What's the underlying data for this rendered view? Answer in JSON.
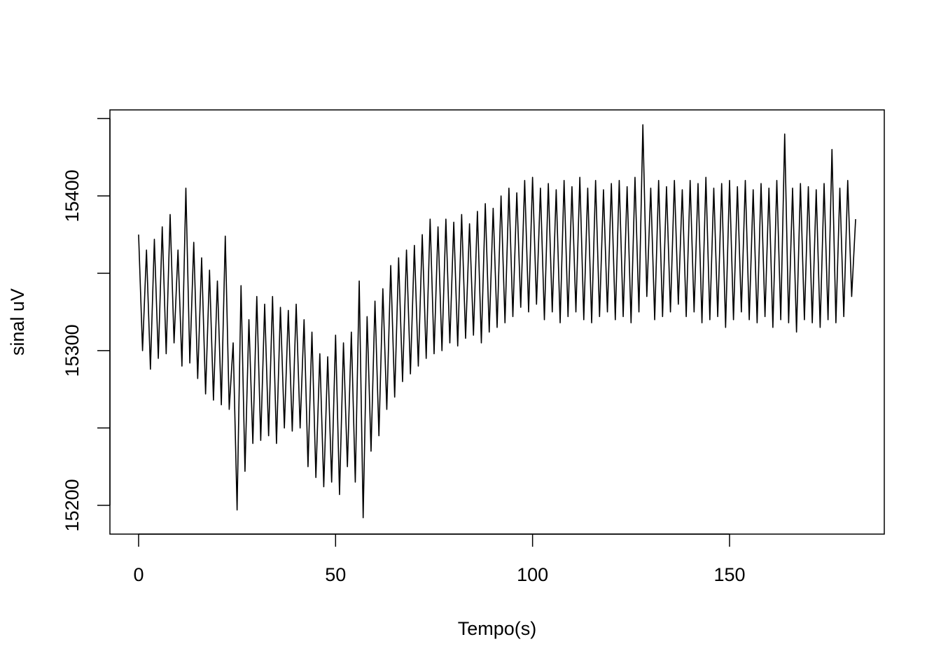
{
  "chart_data": {
    "type": "line",
    "xlabel": "Tempo(s)",
    "ylabel": "sinal uV",
    "x": [
      0,
      1,
      2,
      3,
      4,
      5,
      6,
      7,
      8,
      9,
      10,
      11,
      12,
      13,
      14,
      15,
      16,
      17,
      18,
      19,
      20,
      21,
      22,
      23,
      24,
      25,
      26,
      27,
      28,
      29,
      30,
      31,
      32,
      33,
      34,
      35,
      36,
      37,
      38,
      39,
      40,
      41,
      42,
      43,
      44,
      45,
      46,
      47,
      48,
      49,
      50,
      51,
      52,
      53,
      54,
      55,
      56,
      57,
      58,
      59,
      60,
      61,
      62,
      63,
      64,
      65,
      66,
      67,
      68,
      69,
      70,
      71,
      72,
      73,
      74,
      75,
      76,
      77,
      78,
      79,
      80,
      81,
      82,
      83,
      84,
      85,
      86,
      87,
      88,
      89,
      90,
      91,
      92,
      93,
      94,
      95,
      96,
      97,
      98,
      99,
      100,
      101,
      102,
      103,
      104,
      105,
      106,
      107,
      108,
      109,
      110,
      111,
      112,
      113,
      114,
      115,
      116,
      117,
      118,
      119,
      120,
      121,
      122,
      123,
      124,
      125,
      126,
      127,
      128,
      129,
      130,
      131,
      132,
      133,
      134,
      135,
      136,
      137,
      138,
      139,
      140,
      141,
      142,
      143,
      144,
      145,
      146,
      147,
      148,
      149,
      150,
      151,
      152,
      153,
      154,
      155,
      156,
      157,
      158,
      159,
      160,
      161,
      162,
      163,
      164,
      165,
      166,
      167,
      168,
      169,
      170,
      171,
      172,
      173,
      174,
      175,
      176,
      177,
      178,
      179,
      180,
      181,
      182
    ],
    "series": [
      {
        "color": "#000000",
        "values": [
          15375,
          15300,
          15365,
          15288,
          15372,
          15295,
          15380,
          15298,
          15388,
          15305,
          15365,
          15290,
          15405,
          15292,
          15370,
          15282,
          15360,
          15272,
          15352,
          15268,
          15345,
          15265,
          15374,
          15262,
          15305,
          15197,
          15342,
          15222,
          15320,
          15240,
          15335,
          15242,
          15330,
          15245,
          15335,
          15240,
          15328,
          15250,
          15326,
          15248,
          15330,
          15250,
          15320,
          15225,
          15312,
          15218,
          15298,
          15212,
          15296,
          15215,
          15310,
          15207,
          15305,
          15225,
          15312,
          15215,
          15345,
          15192,
          15322,
          15235,
          15332,
          15245,
          15340,
          15262,
          15355,
          15270,
          15360,
          15280,
          15365,
          15285,
          15368,
          15290,
          15375,
          15295,
          15385,
          15298,
          15380,
          15300,
          15385,
          15305,
          15383,
          15303,
          15388,
          15308,
          15382,
          15310,
          15390,
          15305,
          15395,
          15312,
          15392,
          15315,
          15400,
          15318,
          15405,
          15322,
          15402,
          15328,
          15410,
          15325,
          15412,
          15330,
          15405,
          15320,
          15408,
          15325,
          15404,
          15318,
          15410,
          15322,
          15406,
          15325,
          15412,
          15320,
          15405,
          15318,
          15410,
          15322,
          15404,
          15325,
          15408,
          15320,
          15410,
          15322,
          15406,
          15318,
          15412,
          15325,
          15446,
          15335,
          15405,
          15320,
          15410,
          15322,
          15406,
          15325,
          15410,
          15330,
          15404,
          15322,
          15410,
          15325,
          15408,
          15318,
          15412,
          15320,
          15405,
          15322,
          15408,
          15315,
          15410,
          15320,
          15406,
          15325,
          15410,
          15320,
          15404,
          15318,
          15408,
          15322,
          15405,
          15315,
          15410,
          15320,
          15440,
          15318,
          15405,
          15312,
          15408,
          15320,
          15406,
          15318,
          15404,
          15315,
          15408,
          15320,
          15430,
          15318,
          15405,
          15322,
          15410,
          15335,
          15385
        ]
      }
    ],
    "xlim": [
      -7.28,
      189.28
    ],
    "ylim": [
      15181.4,
      15455.6
    ],
    "xticks": [
      0,
      50,
      100,
      150
    ],
    "yticks": [
      15200,
      15300,
      15400
    ],
    "yticks_unlabeled": [
      15250,
      15350,
      15450
    ],
    "grid": false
  }
}
